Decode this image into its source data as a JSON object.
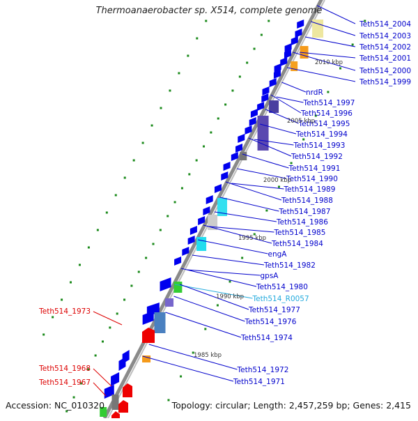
{
  "title": "Thermoanaerobacter sp. X514, complete genome",
  "accession": "Accession: NC_010320",
  "topology": "Topology: circular; Length: 2,457,259 bp; Genes: 2,415",
  "colors": {
    "forward_gene": "#0000ee",
    "reverse_gene": "#ee0000",
    "label_blue": "#0000cc",
    "label_red": "#dd0000",
    "label_rna": "#22aadd",
    "backbone": "#888888",
    "tick": "#1a8a1a"
  },
  "scale_labels": [
    "2010 kbp",
    "2005 kbp",
    "2000 kbp",
    "1995 kbp",
    "1990 kbp",
    "1985 kbp"
  ],
  "gene_labels_right": [
    "Teth514_2004",
    "Teth514_2003",
    "Teth514_2002",
    "Teth514_2001",
    "Teth514_2000",
    "Teth514_1999",
    "nrdR",
    "Teth514_1997",
    "Teth514_1996",
    "Teth514_1995",
    "Teth514_1994",
    "Teth514_1993",
    "Teth514_1992",
    "Teth514_1991",
    "Teth514_1990",
    "Teth514_1989",
    "Teth514_1988",
    "Teth514_1987",
    "Teth514_1986",
    "Teth514_1985",
    "Teth514_1984",
    "engA",
    "Teth514_1982",
    "gpsA",
    "Teth514_1980",
    "Teth514_R0057",
    "Teth514_1977",
    "Teth514_1976",
    "Teth514_1974",
    "Teth514_1972",
    "Teth514_1971"
  ],
  "gene_labels_left": [
    "Teth514_1973",
    "Teth514_1968",
    "Teth514_1967"
  ]
}
